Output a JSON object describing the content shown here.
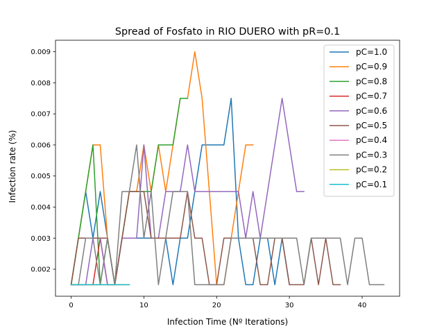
{
  "chart_data": {
    "type": "line",
    "title": "Spread of Fosfato in RIO DUERO with pR=0.1",
    "xlabel": "Infection Time (Nº Iterations)",
    "ylabel": "Infection rate (%)",
    "xlim": [
      -2.15,
      45.15
    ],
    "ylim": [
      0.00113,
      0.00937
    ],
    "xticks": [
      0,
      10,
      20,
      30,
      40
    ],
    "xtick_labels": [
      "0",
      "10",
      "20",
      "30",
      "40"
    ],
    "yticks": [
      0.002,
      0.003,
      0.004,
      0.005,
      0.006,
      0.007,
      0.008,
      0.009
    ],
    "ytick_labels": [
      "0.002",
      "0.003",
      "0.004",
      "0.005",
      "0.006",
      "0.007",
      "0.008",
      "0.009"
    ],
    "grid": false,
    "legend_position": "top-right",
    "series": [
      {
        "name": "pC=1.0",
        "color": "#1f77b4",
        "x": [
          0,
          1,
          2,
          3,
          4,
          5,
          6,
          7,
          8,
          9,
          10,
          11,
          12,
          13,
          14,
          15,
          16,
          17,
          18,
          19,
          20,
          21,
          22,
          23,
          24,
          25,
          26,
          27,
          28,
          29,
          30
        ],
        "y": [
          0.0015,
          0.003,
          0.0045,
          0.003,
          0.0045,
          0.003,
          0.0015,
          0.003,
          0.003,
          0.003,
          0.003,
          0.003,
          0.003,
          0.003,
          0.0015,
          0.003,
          0.003,
          0.0045,
          0.006,
          0.006,
          0.006,
          0.006,
          0.0075,
          0.003,
          0.0015,
          0.0015,
          0.003,
          0.003,
          0.0015,
          0.003,
          0.0015
        ]
      },
      {
        "name": "pC=0.9",
        "color": "#ff7f0e",
        "x": [
          0,
          1,
          2,
          3,
          4,
          5,
          6,
          7,
          8,
          9,
          10,
          11,
          12,
          13,
          14,
          15,
          16,
          17,
          18,
          19,
          20,
          21,
          22,
          23,
          24,
          25
        ],
        "y": [
          0.0015,
          0.003,
          0.0045,
          0.006,
          0.006,
          0.003,
          0.0015,
          0.003,
          0.0045,
          0.0045,
          0.006,
          0.0045,
          0.006,
          0.0045,
          0.006,
          0.0075,
          0.0075,
          0.009,
          0.0075,
          0.0045,
          0.0015,
          0.0015,
          0.003,
          0.0045,
          0.006,
          0.006
        ]
      },
      {
        "name": "pC=0.8",
        "color": "#2ca02c",
        "x": [
          0,
          1,
          2,
          3,
          4,
          5,
          6,
          7,
          8,
          9,
          10,
          11,
          12,
          13,
          14,
          15,
          16
        ],
        "y": [
          0.0015,
          0.003,
          0.0045,
          0.006,
          0.0015,
          0.003,
          0.0015,
          0.003,
          0.0045,
          0.0045,
          0.0045,
          0.0045,
          0.006,
          0.006,
          0.006,
          0.0075,
          0.0075
        ]
      },
      {
        "name": "pC=0.7",
        "color": "#d62728",
        "x": [
          0,
          1,
          2,
          3,
          4,
          5,
          6
        ],
        "y": [
          0.0015,
          0.0015,
          0.0015,
          0.0015,
          0.003,
          0.0015,
          0.0015
        ]
      },
      {
        "name": "pC=0.6",
        "color": "#9467bd",
        "x": [
          0,
          1,
          2,
          3,
          4,
          5,
          6,
          7,
          8,
          9,
          10,
          11,
          12,
          13,
          14,
          15,
          16,
          17,
          18,
          19,
          20,
          21,
          22,
          23,
          24,
          25,
          26,
          27,
          28,
          29,
          30,
          31,
          32
        ],
        "y": [
          0.0015,
          0.0015,
          0.0015,
          0.003,
          0.003,
          0.0015,
          0.0015,
          0.003,
          0.003,
          0.003,
          0.006,
          0.003,
          0.003,
          0.0045,
          0.0045,
          0.0045,
          0.006,
          0.0045,
          0.0045,
          0.0045,
          0.0045,
          0.0045,
          0.0045,
          0.0045,
          0.003,
          0.0045,
          0.003,
          0.0045,
          0.006,
          0.0075,
          0.006,
          0.0045,
          0.0045
        ]
      },
      {
        "name": "pC=0.5",
        "color": "#8c564b",
        "x": [
          0,
          1,
          2,
          3,
          4,
          5,
          6,
          7,
          8,
          9,
          10,
          11,
          12,
          13,
          14,
          15,
          16,
          17,
          18,
          19,
          20,
          21,
          22,
          23,
          24,
          25,
          26,
          27,
          28,
          29,
          30,
          31,
          32,
          33,
          34,
          35,
          36,
          37
        ],
        "y": [
          0.0015,
          0.003,
          0.003,
          0.003,
          0.003,
          0.003,
          0.0015,
          0.003,
          0.0045,
          0.0045,
          0.0045,
          0.003,
          0.003,
          0.003,
          0.003,
          0.003,
          0.0045,
          0.003,
          0.003,
          0.0015,
          0.0015,
          0.003,
          0.003,
          0.003,
          0.003,
          0.003,
          0.0015,
          0.0015,
          0.003,
          0.003,
          0.0015,
          0.0015,
          0.0015,
          0.003,
          0.0015,
          0.003,
          0.0015,
          0.0015
        ]
      },
      {
        "name": "pC=0.4",
        "color": "#e377c2",
        "x": [
          0,
          1,
          2,
          3,
          4,
          5,
          6,
          7
        ],
        "y": [
          0.0015,
          0.0015,
          0.0015,
          0.0015,
          0.0015,
          0.0015,
          0.0015,
          0.0015
        ]
      },
      {
        "name": "pC=0.3",
        "color": "#7f7f7f",
        "x": [
          0,
          1,
          2,
          3,
          4,
          5,
          6,
          7,
          8,
          9,
          10,
          11,
          12,
          13,
          14,
          15,
          16,
          17,
          18,
          19,
          20,
          21,
          22,
          23,
          24,
          25,
          26,
          27,
          28,
          29,
          30,
          31,
          32,
          33,
          34,
          35,
          36,
          37,
          38,
          39,
          40,
          41,
          42,
          43
        ],
        "y": [
          0.0015,
          0.0015,
          0.003,
          0.003,
          0.0015,
          0.003,
          0.0015,
          0.0045,
          0.0045,
          0.006,
          0.003,
          0.0045,
          0.0015,
          0.003,
          0.0045,
          0.0045,
          0.0045,
          0.0015,
          0.0015,
          0.0015,
          0.0015,
          0.0015,
          0.003,
          0.003,
          0.003,
          0.003,
          0.003,
          0.003,
          0.003,
          0.003,
          0.003,
          0.003,
          0.0015,
          0.003,
          0.003,
          0.003,
          0.003,
          0.003,
          0.0015,
          0.003,
          0.003,
          0.0015,
          0.0015,
          0.0015
        ]
      },
      {
        "name": "pC=0.2",
        "color": "#bcbd22",
        "x": [
          0,
          1,
          2,
          3,
          4,
          5,
          6,
          7,
          8
        ],
        "y": [
          0.0015,
          0.0015,
          0.0015,
          0.0015,
          0.0015,
          0.0015,
          0.0015,
          0.0015,
          0.0015
        ]
      },
      {
        "name": "pC=0.1",
        "color": "#17becf",
        "x": [
          0,
          1,
          2,
          3,
          4,
          5,
          6,
          7,
          8
        ],
        "y": [
          0.0015,
          0.0015,
          0.0015,
          0.0015,
          0.0015,
          0.0015,
          0.0015,
          0.0015,
          0.0015
        ]
      }
    ]
  }
}
